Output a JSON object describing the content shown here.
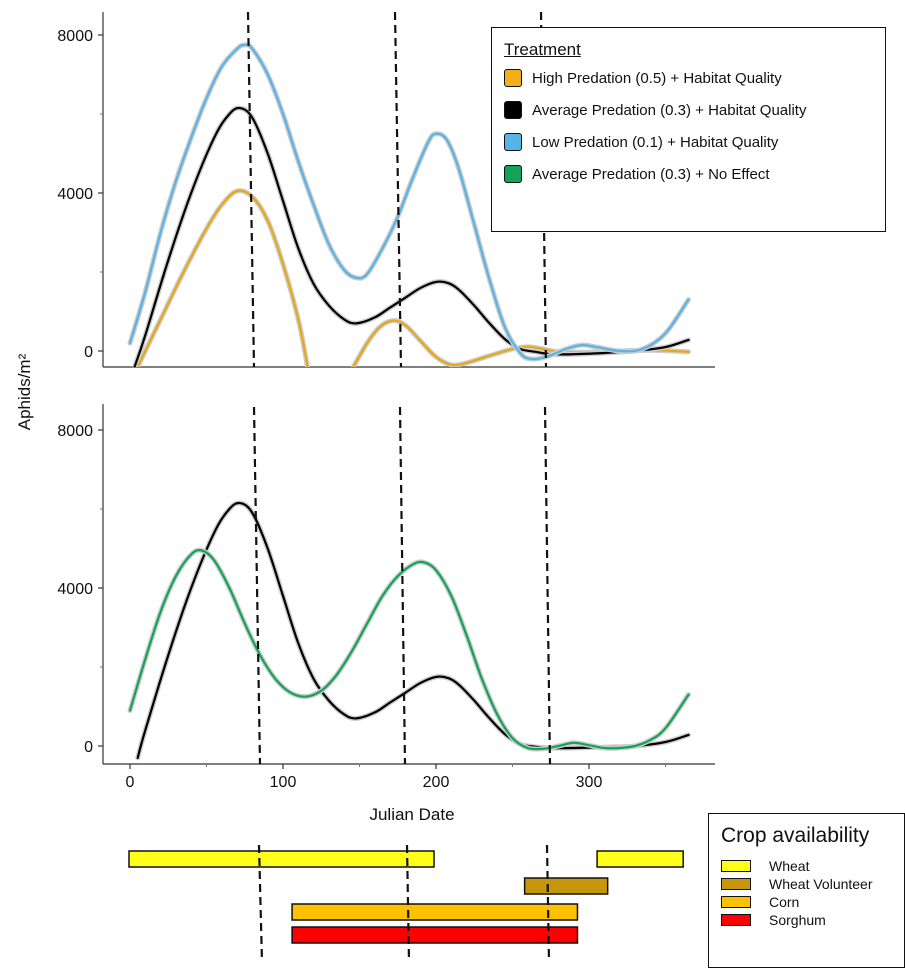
{
  "chart_data": [
    {
      "type": "line",
      "title": "",
      "xlabel": "",
      "ylabel": "Aphids/m²",
      "xlim": [
        -5,
        375
      ],
      "ylim": [
        -400,
        8200
      ],
      "yticks": [
        0,
        4000,
        8000
      ],
      "ytick_labels": [
        "0",
        "4000",
        "8000"
      ],
      "vlines": [
        85,
        180,
        275
      ],
      "grid": false,
      "legend": {
        "title": "Treatment",
        "placement": "top-right",
        "entries": [
          {
            "label": "High Predation (0.5) + Habitat Quality",
            "color": "#f2ae1c"
          },
          {
            "label": "Average Predation (0.3) + Habitat Quality",
            "color": "#000000"
          },
          {
            "label": "Low Predation (0.1) + Habitat Quality",
            "color": "#56b4e9"
          },
          {
            "label": "Average Predation (0.3) + No Effect",
            "color": "#12a356"
          }
        ]
      },
      "series": [
        {
          "name": "High Predation (0.5) + Habitat Quality",
          "color": "#e6a817",
          "segments": [
            [
              [
                5,
                -400
              ],
              [
                20,
                800
              ],
              [
                35,
                2000
              ],
              [
                50,
                3100
              ],
              [
                60,
                3700
              ],
              [
                70,
                4050
              ],
              [
                80,
                3900
              ],
              [
                90,
                3300
              ],
              [
                100,
                2200
              ],
              [
                110,
                800
              ],
              [
                116,
                -400
              ]
            ],
            [
              [
                146,
                -400
              ],
              [
                155,
                200
              ],
              [
                163,
                600
              ],
              [
                172,
                770
              ],
              [
                180,
                650
              ],
              [
                190,
                250
              ],
              [
                200,
                -150
              ],
              [
                210,
                -350
              ],
              [
                220,
                -300
              ],
              [
                235,
                -120
              ],
              [
                250,
                50
              ],
              [
                260,
                110
              ],
              [
                270,
                50
              ],
              [
                280,
                -20
              ],
              [
                300,
                -30
              ],
              [
                320,
                0
              ],
              [
                340,
                20
              ],
              [
                365,
                -20
              ]
            ]
          ]
        },
        {
          "name": "Average Predation (0.3) + Habitat Quality",
          "color": "#000000",
          "segments": [
            [
              [
                3,
                -400
              ],
              [
                10,
                400
              ],
              [
                25,
                2300
              ],
              [
                40,
                4000
              ],
              [
                55,
                5400
              ],
              [
                65,
                6000
              ],
              [
                72,
                6150
              ],
              [
                80,
                5900
              ],
              [
                90,
                5000
              ],
              [
                100,
                3800
              ],
              [
                110,
                2600
              ],
              [
                120,
                1700
              ],
              [
                130,
                1150
              ],
              [
                140,
                800
              ],
              [
                148,
                700
              ],
              [
                160,
                850
              ],
              [
                170,
                1100
              ],
              [
                180,
                1350
              ],
              [
                190,
                1600
              ],
              [
                200,
                1750
              ],
              [
                208,
                1720
              ],
              [
                215,
                1550
              ],
              [
                225,
                1150
              ],
              [
                235,
                700
              ],
              [
                245,
                300
              ],
              [
                255,
                50
              ],
              [
                265,
                -20
              ],
              [
                275,
                -80
              ],
              [
                290,
                -80
              ],
              [
                310,
                -50
              ],
              [
                330,
                0
              ],
              [
                350,
                100
              ],
              [
                365,
                280
              ]
            ]
          ]
        },
        {
          "name": "Low Predation (0.1) + Habitat Quality",
          "color": "#56b4e9",
          "segments": [
            [
              [
                0,
                200
              ],
              [
                10,
                1500
              ],
              [
                20,
                3000
              ],
              [
                30,
                4300
              ],
              [
                40,
                5400
              ],
              [
                50,
                6400
              ],
              [
                60,
                7200
              ],
              [
                70,
                7650
              ],
              [
                75,
                7750
              ],
              [
                80,
                7650
              ],
              [
                90,
                7000
              ],
              [
                100,
                6000
              ],
              [
                110,
                4800
              ],
              [
                120,
                3700
              ],
              [
                130,
                2700
              ],
              [
                140,
                2050
              ],
              [
                148,
                1850
              ],
              [
                155,
                1950
              ],
              [
                165,
                2600
              ],
              [
                175,
                3400
              ],
              [
                185,
                4400
              ],
              [
                195,
                5300
              ],
              [
                200,
                5500
              ],
              [
                207,
                5350
              ],
              [
                215,
                4600
              ],
              [
                225,
                3200
              ],
              [
                235,
                1800
              ],
              [
                245,
                600
              ],
              [
                255,
                -50
              ],
              [
                262,
                -200
              ],
              [
                272,
                -150
              ],
              [
                285,
                50
              ],
              [
                295,
                150
              ],
              [
                305,
                100
              ],
              [
                320,
                0
              ],
              [
                335,
                50
              ],
              [
                350,
                450
              ],
              [
                365,
                1300
              ]
            ]
          ]
        }
      ]
    },
    {
      "type": "line",
      "title": "",
      "xlabel": "Julian Date",
      "ylabel": "Aphids/m²",
      "xlim": [
        -5,
        375
      ],
      "ylim": [
        -200,
        8200
      ],
      "xticks": [
        0,
        100,
        200,
        300
      ],
      "xtick_labels": [
        "0",
        "100",
        "200",
        "300"
      ],
      "yticks": [
        0,
        4000,
        8000
      ],
      "ytick_labels": [
        "0",
        "4000",
        "8000"
      ],
      "vlines": [
        85,
        180,
        275
      ],
      "grid": false,
      "series": [
        {
          "name": "Average Predation (0.3) + Habitat Quality",
          "color": "#000000",
          "segments": [
            [
              [
                5,
                -300
              ],
              [
                10,
                400
              ],
              [
                25,
                2300
              ],
              [
                40,
                4000
              ],
              [
                55,
                5400
              ],
              [
                65,
                6000
              ],
              [
                72,
                6150
              ],
              [
                80,
                5900
              ],
              [
                90,
                5000
              ],
              [
                100,
                3800
              ],
              [
                110,
                2600
              ],
              [
                120,
                1700
              ],
              [
                130,
                1150
              ],
              [
                140,
                800
              ],
              [
                148,
                700
              ],
              [
                160,
                850
              ],
              [
                170,
                1100
              ],
              [
                180,
                1350
              ],
              [
                190,
                1600
              ],
              [
                200,
                1750
              ],
              [
                208,
                1720
              ],
              [
                215,
                1550
              ],
              [
                225,
                1150
              ],
              [
                235,
                700
              ],
              [
                245,
                300
              ],
              [
                255,
                50
              ],
              [
                265,
                -20
              ],
              [
                275,
                -50
              ],
              [
                290,
                -50
              ],
              [
                310,
                -30
              ],
              [
                330,
                0
              ],
              [
                350,
                100
              ],
              [
                365,
                280
              ]
            ]
          ]
        },
        {
          "name": "Average Predation (0.3) + No Effect",
          "color": "#12a356",
          "segments": [
            [
              [
                0,
                900
              ],
              [
                10,
                2200
              ],
              [
                20,
                3400
              ],
              [
                30,
                4300
              ],
              [
                40,
                4850
              ],
              [
                47,
                4950
              ],
              [
                55,
                4700
              ],
              [
                65,
                4000
              ],
              [
                75,
                3100
              ],
              [
                85,
                2300
              ],
              [
                95,
                1700
              ],
              [
                105,
                1350
              ],
              [
                115,
                1250
              ],
              [
                125,
                1400
              ],
              [
                135,
                1800
              ],
              [
                145,
                2400
              ],
              [
                155,
                3100
              ],
              [
                165,
                3800
              ],
              [
                175,
                4300
              ],
              [
                185,
                4600
              ],
              [
                192,
                4650
              ],
              [
                200,
                4450
              ],
              [
                210,
                3800
              ],
              [
                220,
                2800
              ],
              [
                230,
                1700
              ],
              [
                240,
                800
              ],
              [
                250,
                200
              ],
              [
                260,
                -50
              ],
              [
                270,
                -70
              ],
              [
                280,
                0
              ],
              [
                290,
                80
              ],
              [
                300,
                20
              ],
              [
                310,
                -50
              ],
              [
                320,
                -50
              ],
              [
                330,
                0
              ],
              [
                340,
                150
              ],
              [
                350,
                450
              ],
              [
                365,
                1300
              ]
            ]
          ]
        }
      ]
    },
    {
      "type": "bar",
      "title": "Crop availability",
      "legend_placement": "right",
      "vlines": [
        85,
        180,
        275
      ],
      "grid": false,
      "series": [
        {
          "name": "Wheat",
          "color": "#ffff1a",
          "ranges": [
            [
              0,
              202
            ],
            [
              310,
              367
            ]
          ]
        },
        {
          "name": "Wheat Volunteer",
          "color": "#c8960c",
          "ranges": [
            [
              262,
              317
            ]
          ]
        },
        {
          "name": "Corn",
          "color": "#ffc000",
          "ranges": [
            [
              108,
              297
            ]
          ]
        },
        {
          "name": "Sorghum",
          "color": "#ff0000",
          "ranges": [
            [
              108,
              297
            ]
          ]
        }
      ]
    }
  ]
}
